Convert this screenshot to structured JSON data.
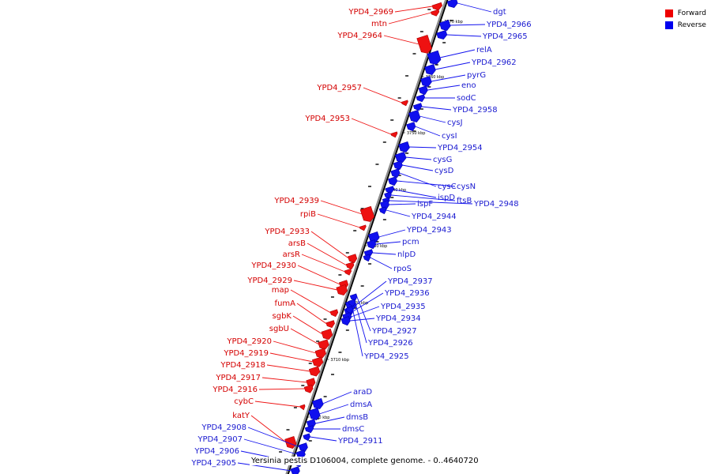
{
  "caption": "Yersinia pestis D106004, complete genome. - 0..4640720",
  "legend": [
    {
      "label": "Forward",
      "color": "#ee0000"
    },
    {
      "label": "Reverse",
      "color": "#0000ee"
    }
  ],
  "colors": {
    "forward": "#ee1111",
    "reverse": "#1010ee",
    "backbone": "#8c8c8c",
    "forward_label": "#d40000",
    "reverse_label": "#1a1ad0"
  },
  "ticks": [
    "3770 kbp",
    "3760 kbp",
    "3750 kbp",
    "3740 kbp",
    "3730 kbp",
    "3720 kbp",
    "3710 kbp",
    "3700 kbp"
  ],
  "forward_genes": [
    "YPD4_2969",
    "mtn",
    "YPD4_2964",
    "YPD4_2957",
    "YPD4_2953",
    "YPD4_2939",
    "rpiB",
    "YPD4_2933",
    "arsB",
    "arsR",
    "YPD4_2930",
    "YPD4_2929",
    "map",
    "fumA",
    "sgbK",
    "sgbU",
    "YPD4_2920",
    "YPD4_2919",
    "YPD4_2918",
    "YPD4_2917",
    "YPD4_2916",
    "cybC",
    "katY"
  ],
  "reverse_genes": [
    "dgt",
    "YPD4_2966",
    "YPD4_2965",
    "relA",
    "YPD4_2962",
    "pyrG",
    "eno",
    "sodC",
    "YPD4_2958",
    "cysJ",
    "cysI",
    "YPD4_2954",
    "cysG",
    "cysD",
    "cysC",
    "cysN",
    "ispD",
    "ftsB",
    "YPD4_2948",
    "ispF",
    "YPD4_2944",
    "YPD4_2943",
    "pcm",
    "nlpD",
    "rpoS",
    "YPD4_2937",
    "YPD4_2936",
    "YPD4_2935",
    "YPD4_2934",
    "YPD4_2927",
    "YPD4_2926",
    "YPD4_2925",
    "araD",
    "dmsA",
    "dmsB",
    "dmsC",
    "YPD4_2911",
    "YPD4_2908",
    "YPD4_2907",
    "YPD4_2906",
    "YPD4_2905"
  ]
}
